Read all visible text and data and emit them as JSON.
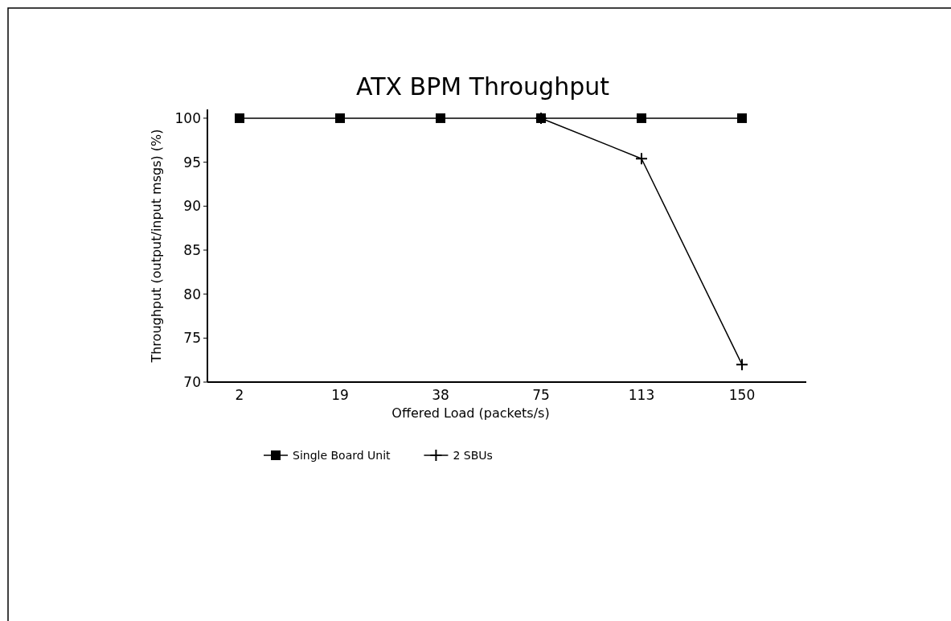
{
  "chart_data": {
    "type": "line",
    "title": "ATX BPM Throughput",
    "xlabel": "Offered Load (packets/s)",
    "ylabel": "Throughput (output/input msgs) (%)",
    "categories": [
      "2",
      "19",
      "38",
      "75",
      "113",
      "150"
    ],
    "series": [
      {
        "name": "Single Board Unit",
        "color": "#000000",
        "marker": "square",
        "values": [
          100,
          100,
          100,
          100,
          100,
          100
        ]
      },
      {
        "name": "2 SBUs",
        "color": "#000000",
        "marker": "cross",
        "values": [
          null,
          null,
          null,
          100,
          95.4,
          72
        ]
      }
    ],
    "ylim": [
      70,
      101
    ],
    "yticks": [
      70,
      75,
      80,
      85,
      90,
      95,
      100
    ],
    "grid": false,
    "legend": "bottom"
  }
}
